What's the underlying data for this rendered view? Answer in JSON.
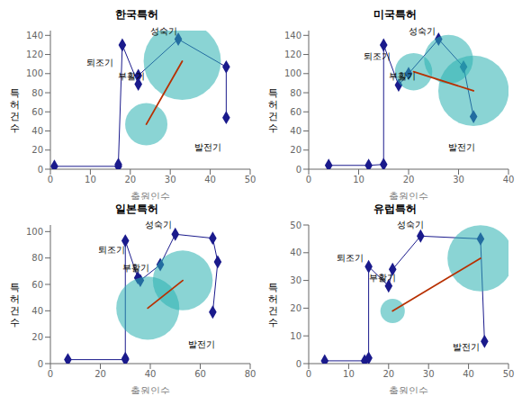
{
  "chart_data": [
    {
      "type": "scatter",
      "title": "한국특허",
      "xlabel": "출원인수",
      "ylabel": "특\n허\n건\n수",
      "xlim": [
        0,
        50
      ],
      "ylim": [
        0,
        145
      ],
      "xticks": [
        0,
        10,
        20,
        30,
        40,
        50
      ],
      "yticks": [
        0,
        20,
        40,
        60,
        80,
        100,
        120,
        140
      ],
      "grid": false,
      "series": [
        {
          "type": "line",
          "color": "#1a1a8c",
          "marker": "diamond",
          "x": [
            1,
            17,
            17,
            18,
            22,
            22,
            32,
            44,
            44
          ],
          "values": [
            3,
            3,
            5,
            130,
            89,
            98,
            136,
            107,
            54
          ]
        },
        {
          "type": "bubble",
          "color": "#2ab0b0",
          "x": [
            24,
            33
          ],
          "values": [
            47,
            113
          ],
          "sizes": [
            900,
            3000
          ]
        },
        {
          "type": "line",
          "color": "#b83000",
          "x": [
            24,
            33
          ],
          "values": [
            47,
            113
          ]
        }
      ],
      "annotations": [
        {
          "text": "퇴조기",
          "x": 9,
          "y": 108
        },
        {
          "text": "부활기",
          "x": 17,
          "y": 94
        },
        {
          "text": "성숙기",
          "x": 25,
          "y": 141
        },
        {
          "text": "발전기",
          "x": 36,
          "y": 20
        }
      ]
    },
    {
      "type": "scatter",
      "title": "미국특허",
      "xlabel": "출원인수",
      "ylabel": "특\n허\n건\n수",
      "xlim": [
        0,
        40
      ],
      "ylim": [
        0,
        145
      ],
      "xticks": [
        0,
        10,
        20,
        30,
        40
      ],
      "yticks": [
        0,
        20,
        40,
        60,
        80,
        100,
        120,
        140
      ],
      "grid": false,
      "series": [
        {
          "type": "line",
          "color": "#1a1a8c",
          "marker": "diamond",
          "x": [
            4,
            12,
            15,
            15,
            18,
            20,
            26,
            31,
            33
          ],
          "values": [
            4,
            4,
            5,
            130,
            88,
            100,
            136,
            107,
            55
          ]
        },
        {
          "type": "bubble",
          "color": "#2ab0b0",
          "x": [
            21,
            28,
            33
          ],
          "values": [
            102,
            115,
            82
          ],
          "sizes": [
            700,
            1200,
            2500
          ]
        },
        {
          "type": "line",
          "color": "#b83000",
          "x": [
            21,
            33
          ],
          "values": [
            102,
            82
          ]
        }
      ],
      "annotations": [
        {
          "text": "퇴조기",
          "x": 11,
          "y": 115
        },
        {
          "text": "부활기",
          "x": 16,
          "y": 94
        },
        {
          "text": "성숙기",
          "x": 20,
          "y": 141
        },
        {
          "text": "발전기",
          "x": 28,
          "y": 20
        }
      ]
    },
    {
      "type": "scatter",
      "title": "일본특허",
      "xlabel": "출원인수",
      "ylabel": "특\n허\n건\n수",
      "xlim": [
        0,
        80
      ],
      "ylim": [
        0,
        105
      ],
      "xticks": [
        0,
        20,
        40,
        60,
        80
      ],
      "yticks": [
        0,
        20,
        40,
        60,
        80,
        100
      ],
      "grid": false,
      "series": [
        {
          "type": "line",
          "color": "#1a1a8c",
          "marker": "diamond",
          "x": [
            7,
            30,
            30,
            30,
            35,
            36,
            44,
            50,
            65,
            67,
            65
          ],
          "values": [
            3,
            3,
            4,
            93,
            65,
            63,
            75,
            98,
            95,
            77,
            39
          ]
        },
        {
          "type": "bubble",
          "color": "#2ab0b0",
          "x": [
            39,
            53
          ],
          "values": [
            42,
            63
          ],
          "sizes": [
            2000,
            1800
          ]
        },
        {
          "type": "line",
          "color": "#b83000",
          "x": [
            39,
            53
          ],
          "values": [
            42,
            63
          ]
        }
      ],
      "annotations": [
        {
          "text": "퇴조기",
          "x": 19,
          "y": 84
        },
        {
          "text": "부활기",
          "x": 29,
          "y": 70
        },
        {
          "text": "성숙기",
          "x": 38,
          "y": 103
        },
        {
          "text": "발전기",
          "x": 55,
          "y": 12
        }
      ]
    },
    {
      "type": "scatter",
      "title": "유럽특허",
      "xlabel": "출원인수",
      "ylabel": "특\n허\n건\n수",
      "xlim": [
        0,
        50
      ],
      "ylim": [
        0,
        50
      ],
      "xticks": [
        0,
        10,
        20,
        30,
        40,
        50
      ],
      "yticks": [
        0,
        10,
        20,
        30,
        40,
        50
      ],
      "grid": false,
      "series": [
        {
          "type": "line",
          "color": "#1a1a8c",
          "marker": "diamond",
          "x": [
            4,
            14,
            15,
            15,
            20,
            21,
            28,
            43,
            44
          ],
          "values": [
            1,
            1,
            2,
            35,
            28,
            34,
            46,
            45,
            8
          ]
        },
        {
          "type": "bubble",
          "color": "#2ab0b0",
          "x": [
            21,
            43
          ],
          "values": [
            19,
            38
          ],
          "sizes": [
            300,
            2200
          ]
        },
        {
          "type": "line",
          "color": "#b83000",
          "x": [
            21,
            43
          ],
          "values": [
            19,
            38
          ]
        }
      ],
      "annotations": [
        {
          "text": "퇴조기",
          "x": 7,
          "y": 37
        },
        {
          "text": "부활기",
          "x": 15,
          "y": 30
        },
        {
          "text": "성숙기",
          "x": 22,
          "y": 49
        },
        {
          "text": "발전기",
          "x": 36,
          "y": 5
        }
      ]
    }
  ]
}
